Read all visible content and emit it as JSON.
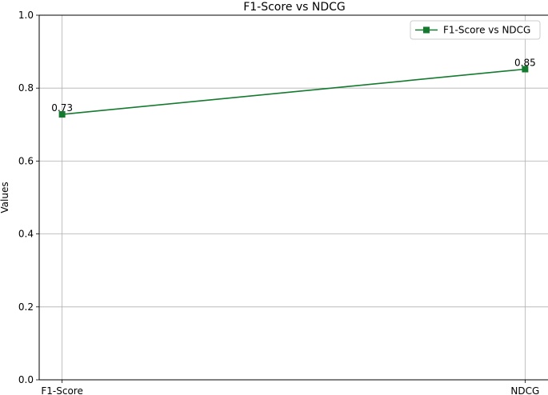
{
  "chart_data": {
    "type": "line",
    "title": "F1-Score vs NDCG",
    "xlabel": "",
    "ylabel": "Values",
    "categories": [
      "F1-Score",
      "NDCG"
    ],
    "series": [
      {
        "name": "F1-Score vs NDCG",
        "values": [
          0.728,
          0.852
        ],
        "labels": [
          "0.73",
          "0.85"
        ],
        "color": "#137a2e",
        "marker": "square"
      }
    ],
    "ylim": [
      0,
      1.0
    ],
    "yticks": [
      0.0,
      0.2,
      0.4,
      0.6,
      0.8,
      1.0
    ],
    "ytick_labels": [
      "0.0",
      "0.2",
      "0.4",
      "0.6",
      "0.8",
      "1.0"
    ],
    "grid": true,
    "legend_position": "top-right"
  }
}
